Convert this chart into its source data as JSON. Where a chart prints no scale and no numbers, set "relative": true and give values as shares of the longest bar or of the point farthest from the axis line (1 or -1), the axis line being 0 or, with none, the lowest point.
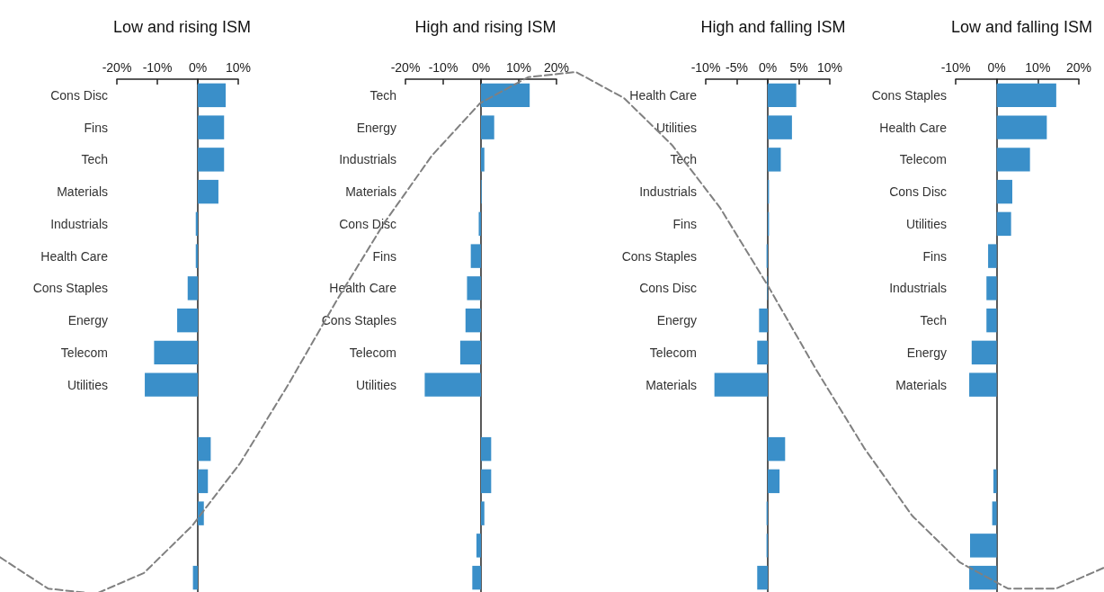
{
  "chart_data": [
    {
      "type": "bar",
      "orientation": "horizontal",
      "title": "Low and rising ISM",
      "categories": [
        "Cons Disc",
        "Fins",
        "Tech",
        "Materials",
        "Industrials",
        "Health Care",
        "Cons Staples",
        "Energy",
        "Telecom",
        "Utilities",
        null,
        null,
        null,
        null,
        null,
        null
      ],
      "values": [
        6.9,
        6.5,
        6.5,
        5.1,
        -0.5,
        -0.5,
        -2.5,
        -5.1,
        -10.8,
        -13.1,
        null,
        3.2,
        2.5,
        1.5,
        null,
        -1.2
      ],
      "color": "#3a8fc9",
      "xlim": [
        -20,
        10
      ],
      "xticks": [
        {
          "value": -20,
          "label": "-20%"
        },
        {
          "value": -10,
          "label": "-10%"
        },
        {
          "value": 0,
          "label": "0%"
        },
        {
          "value": 10,
          "label": "10%"
        }
      ]
    },
    {
      "type": "bar",
      "orientation": "horizontal",
      "title": "High and rising ISM",
      "categories": [
        "Tech",
        "Energy",
        "Industrials",
        "Materials",
        "Cons Disc",
        "Fins",
        "Health Care",
        "Cons Staples",
        "Telecom",
        "Utilities",
        null,
        null,
        null,
        null,
        null,
        null
      ],
      "values": [
        12.9,
        3.5,
        0.9,
        0.2,
        -0.6,
        -2.7,
        -3.7,
        -4.1,
        -5.5,
        -14.9,
        null,
        2.7,
        2.7,
        0.9,
        -1.2,
        -2.3
      ],
      "color": "#3a8fc9",
      "xlim": [
        -20,
        20
      ],
      "xticks": [
        {
          "value": -20,
          "label": "-20%"
        },
        {
          "value": -10,
          "label": "-10%"
        },
        {
          "value": 0,
          "label": "0%"
        },
        {
          "value": 10,
          "label": "10%"
        },
        {
          "value": 20,
          "label": "20%"
        }
      ]
    },
    {
      "type": "bar",
      "orientation": "horizontal",
      "title": "High and falling ISM",
      "categories": [
        "Health Care",
        "Utilities",
        "Tech",
        "Industrials",
        "Fins",
        "Cons Staples",
        "Cons Disc",
        "Energy",
        "Telecom",
        "Materials",
        null,
        null,
        null,
        null,
        null,
        null
      ],
      "values": [
        4.6,
        3.9,
        2.1,
        0.2,
        0.2,
        -0.2,
        -0.1,
        -1.4,
        -1.7,
        -8.6,
        null,
        2.8,
        1.9,
        -0.2,
        -0.2,
        -1.7
      ],
      "color": "#3a8fc9",
      "xlim": [
        -10,
        10
      ],
      "xticks": [
        {
          "value": -10,
          "label": "-10%"
        },
        {
          "value": -5,
          "label": "-5%"
        },
        {
          "value": 0,
          "label": "0%"
        },
        {
          "value": 5,
          "label": "5%"
        },
        {
          "value": 10,
          "label": "10%"
        }
      ]
    },
    {
      "type": "bar",
      "orientation": "horizontal",
      "title": "Low and falling ISM",
      "categories": [
        "Cons Staples",
        "Health Care",
        "Telecom",
        "Cons Disc",
        "Utilities",
        "Fins",
        "Industrials",
        "Tech",
        "Energy",
        "Materials",
        null,
        null,
        null,
        null,
        null,
        null
      ],
      "values": [
        14.5,
        12.2,
        8.1,
        3.8,
        3.5,
        -2.1,
        -2.5,
        -2.5,
        -6.1,
        -6.7,
        null,
        null,
        -0.8,
        -1.1,
        -6.5,
        -6.7
      ],
      "color": "#3a8fc9",
      "xlim": [
        -10,
        20
      ],
      "xticks": [
        {
          "value": -10,
          "label": "-10%"
        },
        {
          "value": 0,
          "label": "0%"
        },
        {
          "value": 10,
          "label": "10%"
        },
        {
          "value": 20,
          "label": "20%"
        }
      ]
    },
    {
      "type": "line",
      "relative": true,
      "categories": [
        null,
        null,
        null,
        null,
        null,
        null,
        null,
        null,
        null,
        null,
        null,
        null,
        null,
        null,
        null,
        null,
        null,
        null,
        null,
        null,
        null,
        null,
        null,
        null
      ],
      "values": [
        0.07,
        0.01,
        0.0,
        0.04,
        0.13,
        0.25,
        0.4,
        0.56,
        0.71,
        0.84,
        0.94,
        0.99,
        1.0,
        0.95,
        0.86,
        0.74,
        0.59,
        0.43,
        0.28,
        0.15,
        0.06,
        0.01,
        0.01,
        0.05
      ],
      "color": "#808080",
      "line_style": "dashed",
      "marker": "none"
    }
  ]
}
